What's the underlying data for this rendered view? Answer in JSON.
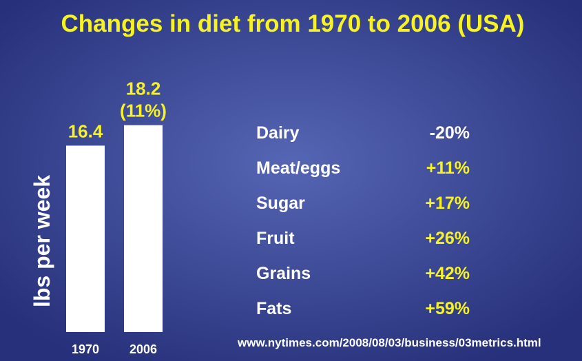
{
  "title": "Changes in diet from 1970 to 2006 (USA)",
  "chart_data": {
    "type": "bar",
    "categories": [
      "1970",
      "2006"
    ],
    "values": [
      16.4,
      18.2
    ],
    "y_label": "lbs per week",
    "annotations": [
      "(11%)"
    ],
    "color": "#ffffff",
    "ylim": [
      0,
      20
    ],
    "yticks": []
  },
  "table": {
    "rows": [
      [
        "Dairy",
        "-20%"
      ],
      [
        "Meat/eggs",
        "+11%"
      ],
      [
        "Sugar",
        "+17%"
      ],
      [
        "Fruit",
        "+26%"
      ],
      [
        "Grains",
        "+42%"
      ],
      [
        "Fats",
        "+59%"
      ]
    ]
  },
  "source": "www.nytimes.com/2008/08/03/business/03metrics.html"
}
